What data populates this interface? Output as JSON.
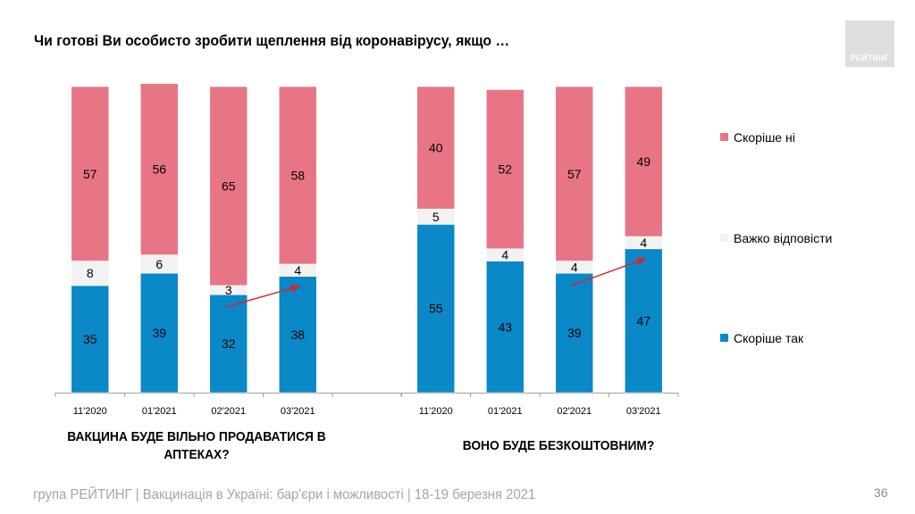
{
  "title": "Чи готові Ви особисто зробити щеплення від коронавірусу, якщо …",
  "logo_text": "РЕЙТИНГ",
  "colors": {
    "no": "#e87585",
    "hard": "#f2f2f2",
    "yes": "#0a88c8",
    "arrow": "#e0202a"
  },
  "legend": [
    {
      "key": "no",
      "label": "Скоріше ні"
    },
    {
      "key": "hard",
      "label": "Важко відповісти"
    },
    {
      "key": "yes",
      "label": "Скоріше так"
    }
  ],
  "chart_data": [
    {
      "type": "bar",
      "stacked": true,
      "title": "ВАКЦИНА БУДЕ ВІЛЬНО ПРОДАВАТИСЯ В АПТЕКАХ?",
      "title_lines": [
        "ВАКЦИНА БУДЕ ВІЛЬНО ПРОДАВАТИСЯ В",
        "АПТЕКАХ?"
      ],
      "categories": [
        "11'2020",
        "01'2021",
        "02'2021",
        "03'2021"
      ],
      "series": [
        {
          "name": "Скоріше так",
          "key": "yes",
          "values": [
            35,
            39,
            32,
            38
          ]
        },
        {
          "name": "Важко відповісти",
          "key": "hard",
          "values": [
            8,
            6,
            3,
            4
          ]
        },
        {
          "name": "Скоріше ні",
          "key": "no",
          "values": [
            57,
            56,
            65,
            58
          ]
        }
      ],
      "ylim": [
        0,
        100
      ],
      "grid": false,
      "legend_position": "right",
      "annotation": {
        "type": "arrow",
        "from_category": "02'2021",
        "to_category": "03'2021",
        "meaning": "increase in Скоріше так"
      }
    },
    {
      "type": "bar",
      "stacked": true,
      "title": "ВОНО БУДЕ БЕЗКОШТОВНИМ?",
      "title_lines": [
        "ВОНО БУДЕ БЕЗКОШТОВНИМ?"
      ],
      "categories": [
        "11'2020",
        "01'2021",
        "02'2021",
        "03'2021"
      ],
      "series": [
        {
          "name": "Скоріше так",
          "key": "yes",
          "values": [
            55,
            43,
            39,
            47
          ]
        },
        {
          "name": "Важко відповісти",
          "key": "hard",
          "values": [
            5,
            4,
            4,
            4
          ]
        },
        {
          "name": "Скоріше ні",
          "key": "no",
          "values": [
            40,
            52,
            57,
            49
          ]
        }
      ],
      "ylim": [
        0,
        100
      ],
      "grid": false,
      "legend_position": "right",
      "annotation": {
        "type": "arrow",
        "from_category": "02'2021",
        "to_category": "03'2021",
        "meaning": "increase in Скоріше так"
      }
    }
  ],
  "footer": "група РЕЙТИНГ | Вакцинація в Україні: бар'єри і можливості | 18-19 березня 2021",
  "page_number": "36"
}
